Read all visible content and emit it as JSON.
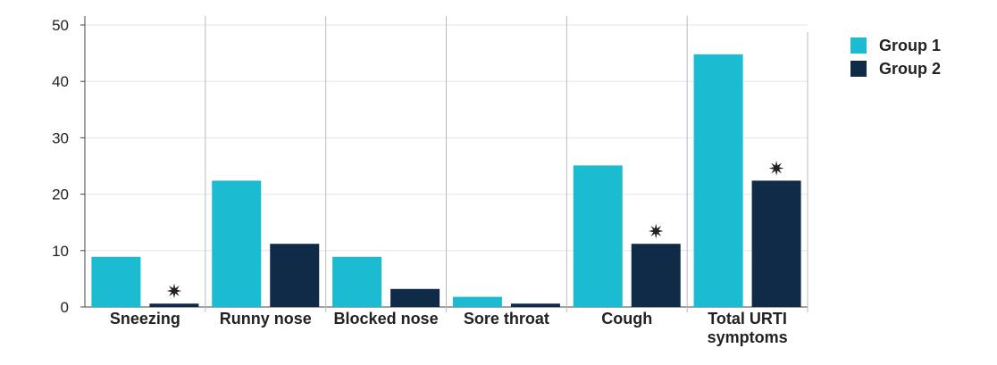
{
  "chart_data": {
    "type": "bar",
    "title": "",
    "xlabel": "",
    "ylabel": "",
    "ylim": [
      0,
      50
    ],
    "yticks": [
      0,
      10,
      20,
      30,
      40,
      50
    ],
    "grid": true,
    "legend_position": "top-right",
    "categories": [
      "Sneezing",
      "Runny nose",
      "Blocked nose",
      "Sore throat",
      "Cough",
      "Total URTI symptoms"
    ],
    "series": [
      {
        "name": "Group 1",
        "color": "#1bbcd1",
        "values": [
          8.9,
          22.4,
          8.9,
          1.8,
          25.1,
          44.8
        ]
      },
      {
        "name": "Group 2",
        "color": "#0f2b47",
        "values": [
          0.6,
          11.2,
          3.2,
          0.6,
          11.2,
          22.4
        ]
      }
    ],
    "significance_markers": [
      {
        "category": "Sneezing",
        "series": "Group 2",
        "symbol": "✷"
      },
      {
        "category": "Cough",
        "series": "Group 2",
        "symbol": "✷"
      },
      {
        "category": "Total URTI symptoms",
        "series": "Group 2",
        "symbol": "✷"
      }
    ]
  }
}
